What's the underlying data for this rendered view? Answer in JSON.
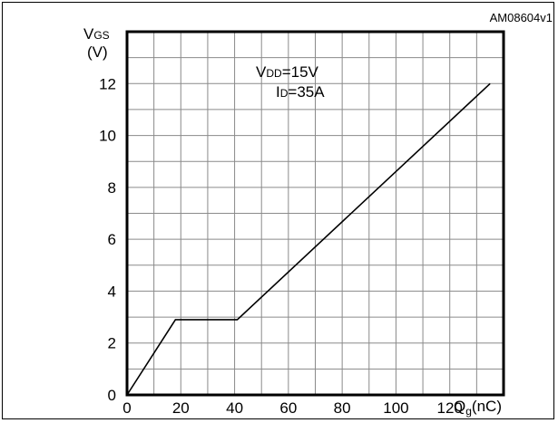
{
  "chart_data": {
    "type": "line",
    "figure_id": "AM08604v1",
    "ylabel_main": "V",
    "ylabel_sub": "GS",
    "ylabel_unit": "(V)",
    "xlabel_main": "Q",
    "xlabel_sub": "g",
    "xlabel_unit": "(nC)",
    "annotation_line1": {
      "main": "V",
      "sub": "DD",
      "rest": "=15V"
    },
    "annotation_line2": {
      "main": "I",
      "sub": "D",
      "rest": "=35A"
    },
    "xlim": [
      0,
      140
    ],
    "ylim": [
      0,
      14
    ],
    "x_ticks": [
      "0",
      "20",
      "40",
      "60",
      "80",
      "100",
      "120"
    ],
    "y_ticks": [
      "0",
      "2",
      "4",
      "6",
      "8",
      "10",
      "12"
    ],
    "x_tick_values": [
      0,
      20,
      40,
      60,
      80,
      100,
      120
    ],
    "y_tick_values": [
      0,
      2,
      4,
      6,
      8,
      10,
      12
    ],
    "grid": true,
    "series": [
      {
        "x": [
          0,
          18,
          41,
          135
        ],
        "y": [
          0,
          2.9,
          2.9,
          12
        ]
      }
    ]
  },
  "colors": {
    "line": "#000000",
    "grid": "#8a8a8a",
    "axes": "#000000"
  }
}
